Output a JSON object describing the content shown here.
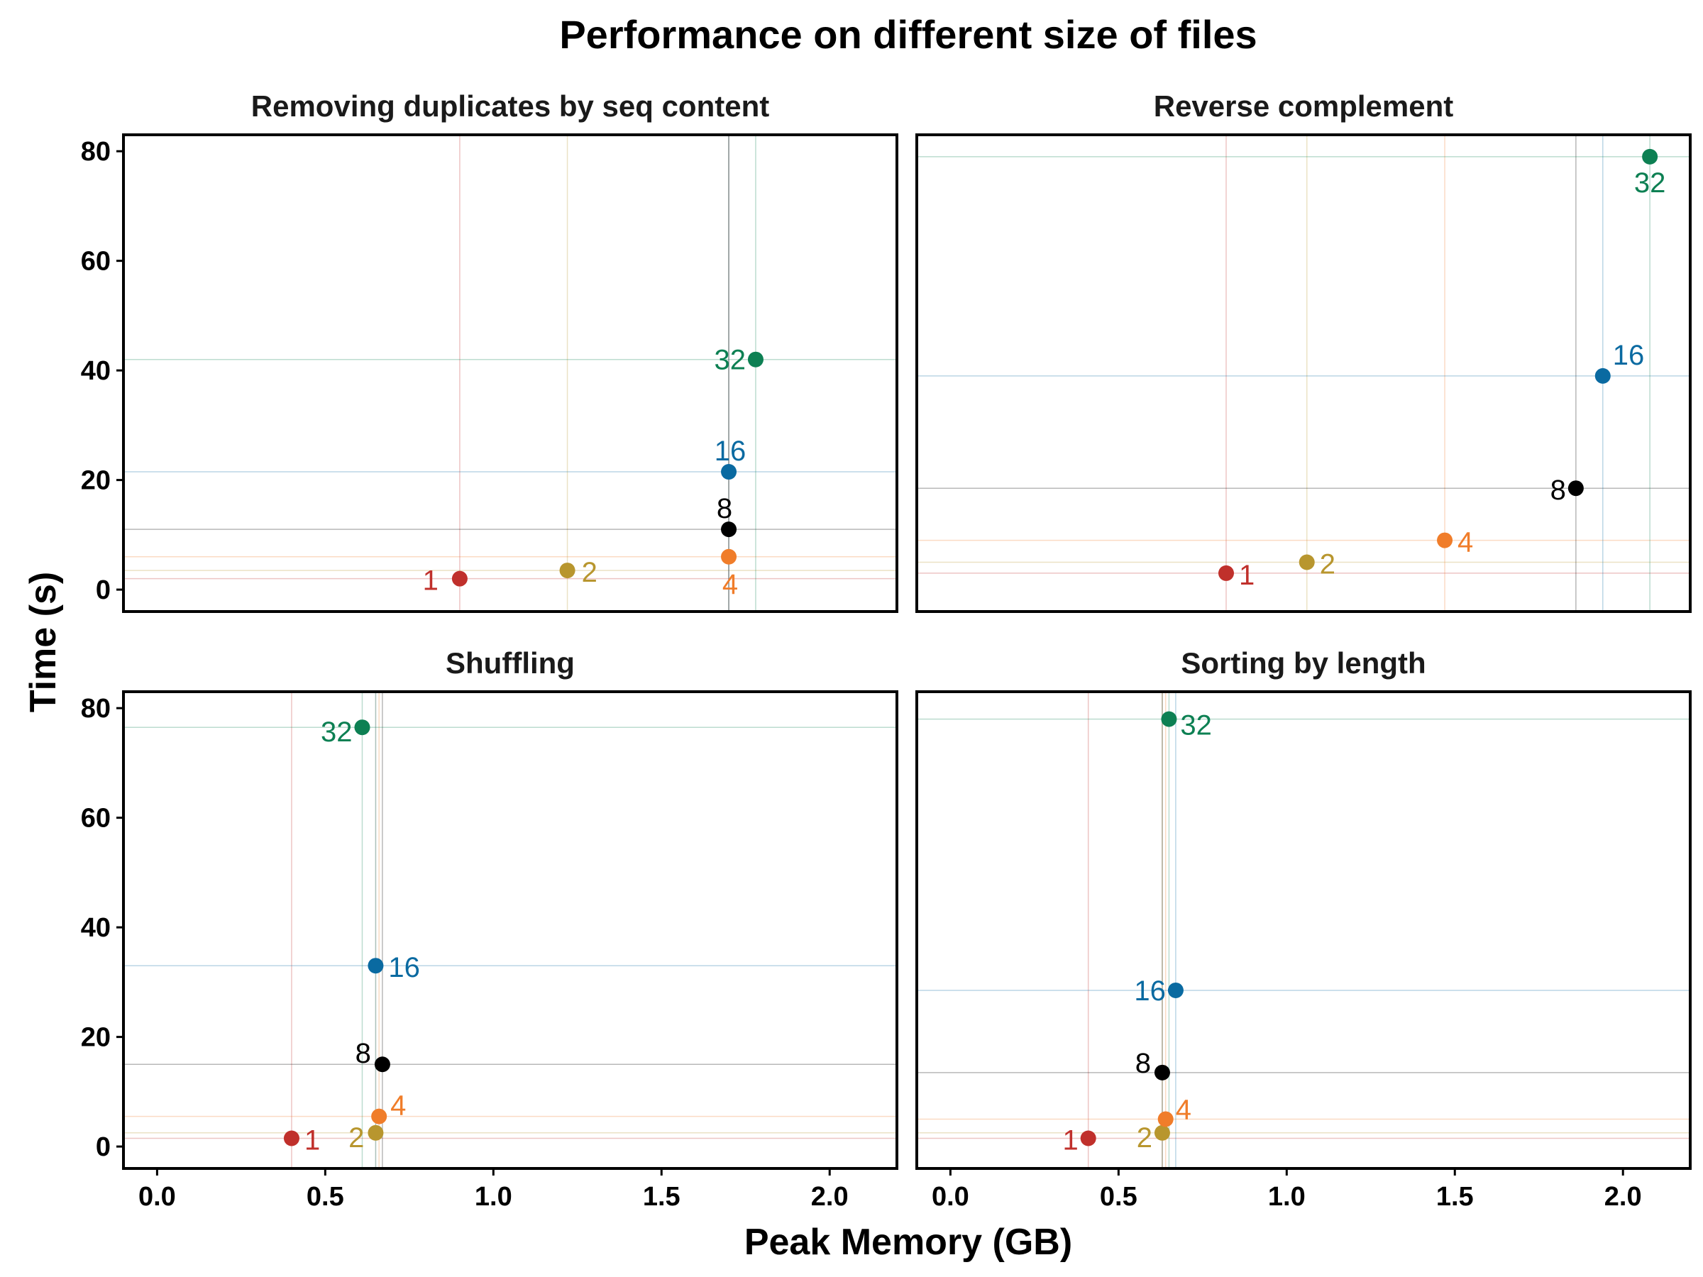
{
  "chart_data": {
    "type": "scatter",
    "title": "Performance on different size of files",
    "xlabel": "Peak Memory (GB)",
    "ylabel": "Time (s)",
    "xlim": [
      -0.1,
      2.2
    ],
    "ylim": [
      -4,
      83
    ],
    "x_ticks": [
      0.0,
      0.5,
      1.0,
      1.5,
      2.0
    ],
    "x_tick_labels": [
      "0.0",
      "0.5",
      "1.0",
      "1.5",
      "2.0"
    ],
    "y_ticks": [
      0,
      20,
      40,
      60,
      80
    ],
    "y_tick_labels": [
      "0",
      "20",
      "40",
      "60",
      "80"
    ],
    "grid": false,
    "legend": "none",
    "colors": {
      "1": "#c0302b",
      "2": "#b8962e",
      "4": "#f07d2a",
      "8": "#000000",
      "16": "#0a6aa1",
      "32": "#0d8053"
    },
    "panels": [
      {
        "name": "Removing duplicates by seq content",
        "points": [
          {
            "label": "1",
            "x": 0.9,
            "y": 2.0
          },
          {
            "label": "2",
            "x": 1.22,
            "y": 3.5
          },
          {
            "label": "4",
            "x": 1.7,
            "y": 6.0
          },
          {
            "label": "8",
            "x": 1.7,
            "y": 11.0
          },
          {
            "label": "16",
            "x": 1.7,
            "y": 21.5
          },
          {
            "label": "32",
            "x": 1.78,
            "y": 42.0
          }
        ]
      },
      {
        "name": "Reverse complement",
        "points": [
          {
            "label": "1",
            "x": 0.82,
            "y": 3.0
          },
          {
            "label": "2",
            "x": 1.06,
            "y": 5.0
          },
          {
            "label": "4",
            "x": 1.47,
            "y": 9.0
          },
          {
            "label": "8",
            "x": 1.86,
            "y": 18.5
          },
          {
            "label": "16",
            "x": 1.94,
            "y": 39.0
          },
          {
            "label": "32",
            "x": 2.08,
            "y": 79.0
          }
        ]
      },
      {
        "name": "Shuffling",
        "points": [
          {
            "label": "1",
            "x": 0.4,
            "y": 1.5
          },
          {
            "label": "2",
            "x": 0.65,
            "y": 2.5
          },
          {
            "label": "4",
            "x": 0.66,
            "y": 5.5
          },
          {
            "label": "8",
            "x": 0.67,
            "y": 15.0
          },
          {
            "label": "16",
            "x": 0.65,
            "y": 33.0
          },
          {
            "label": "32",
            "x": 0.61,
            "y": 76.5
          }
        ]
      },
      {
        "name": "Sorting by length",
        "points": [
          {
            "label": "1",
            "x": 0.41,
            "y": 1.5
          },
          {
            "label": "2",
            "x": 0.63,
            "y": 2.5
          },
          {
            "label": "4",
            "x": 0.64,
            "y": 5.0
          },
          {
            "label": "8",
            "x": 0.63,
            "y": 13.5
          },
          {
            "label": "16",
            "x": 0.67,
            "y": 28.5
          },
          {
            "label": "32",
            "x": 0.65,
            "y": 78.0
          }
        ]
      }
    ]
  }
}
